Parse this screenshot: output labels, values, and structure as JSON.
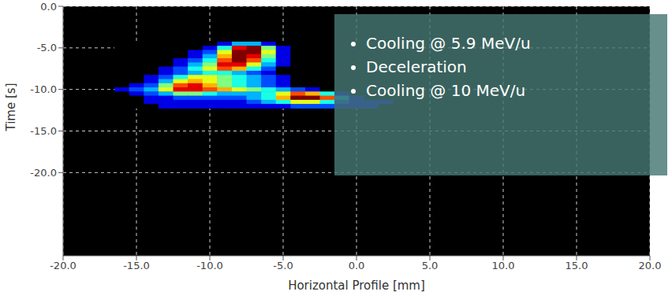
{
  "chart_data": {
    "type": "heatmap",
    "x_label": "Horizontal Profile [mm]",
    "y_label": "Time [s]",
    "xlim": [
      -20,
      20
    ],
    "ylim": [
      -30,
      0
    ],
    "xticks": [
      {
        "value": -20,
        "label": "-20.0"
      },
      {
        "value": -15,
        "label": "-15.0"
      },
      {
        "value": -10,
        "label": "-10.0"
      },
      {
        "value": -5,
        "label": "-5.0"
      },
      {
        "value": 0,
        "label": "0.0"
      },
      {
        "value": 5,
        "label": "5.0"
      },
      {
        "value": 10,
        "label": "10.0"
      },
      {
        "value": 15,
        "label": "15.0"
      },
      {
        "value": 20,
        "label": "20.0"
      }
    ],
    "yticks": [
      {
        "value": 0,
        "label": "0.0"
      },
      {
        "value": -5,
        "label": "-5.0"
      },
      {
        "value": -10,
        "label": "-10.0"
      },
      {
        "value": -15,
        "label": "-15.0"
      },
      {
        "value": -20,
        "label": "-20.0"
      }
    ],
    "grid": true,
    "color_range": [
      0,
      10
    ],
    "annotations": [
      "Cooling @ 5.9 MeV/u",
      "Deceleration",
      "Cooling @ 10 MeV/u"
    ],
    "cells": {
      "x": [
        -16,
        -15,
        -14,
        -13,
        -12,
        -11,
        -10,
        -9,
        -8,
        -7,
        -6,
        -5,
        -4,
        -3,
        -2,
        -1,
        0,
        1,
        2,
        3
      ],
      "y": [
        -4.5,
        -5,
        -5.5,
        -6,
        -6.5,
        -7,
        -7.5,
        -8,
        -8.5,
        -9,
        -9.5,
        -10,
        -10.5,
        -11,
        -11.5,
        -12
      ],
      "values": [
        [
          0,
          0,
          0,
          0,
          0,
          0,
          0,
          1,
          3,
          3,
          1,
          0,
          0,
          0,
          0,
          0,
          0,
          0,
          0,
          0
        ],
        [
          0,
          0,
          0,
          0,
          0,
          0,
          1,
          4,
          9,
          10,
          5,
          1,
          0,
          0,
          0,
          0,
          0,
          0,
          0,
          0
        ],
        [
          0,
          0,
          0,
          0,
          0,
          1,
          2,
          6,
          10,
          10,
          6,
          1,
          0,
          0,
          0,
          0,
          0,
          0,
          0,
          0
        ],
        [
          0,
          0,
          0,
          0,
          0,
          1,
          3,
          7,
          10,
          9,
          5,
          1,
          0,
          0,
          0,
          0,
          0,
          0,
          0,
          0
        ],
        [
          0,
          0,
          0,
          0,
          1,
          2,
          4,
          8,
          10,
          8,
          4,
          1,
          0,
          0,
          0,
          0,
          0,
          0,
          0,
          0
        ],
        [
          0,
          0,
          0,
          0,
          1,
          3,
          5,
          9,
          9,
          6,
          3,
          1,
          0,
          0,
          0,
          0,
          0,
          0,
          0,
          0
        ],
        [
          0,
          0,
          0,
          1,
          2,
          4,
          6,
          8,
          7,
          4,
          2,
          0,
          0,
          0,
          0,
          0,
          0,
          0,
          0,
          0
        ],
        [
          0,
          0,
          0,
          1,
          2,
          3,
          4,
          4,
          3,
          2,
          1,
          0,
          0,
          0,
          0,
          0,
          0,
          0,
          0,
          0
        ],
        [
          0,
          0,
          1,
          2,
          4,
          6,
          6,
          5,
          4,
          3,
          2,
          1,
          0,
          0,
          0,
          0,
          0,
          0,
          0,
          0
        ],
        [
          0,
          0,
          1,
          3,
          6,
          7,
          6,
          5,
          4,
          3,
          2,
          1,
          0,
          0,
          0,
          0,
          0,
          0,
          0,
          0
        ],
        [
          0,
          1,
          2,
          5,
          8,
          9,
          7,
          5,
          4,
          3,
          2,
          1,
          0,
          0,
          0,
          0,
          0,
          0,
          0,
          0
        ],
        [
          1,
          2,
          3,
          6,
          9,
          9,
          8,
          7,
          6,
          5,
          4,
          3,
          2,
          1,
          0,
          0,
          0,
          0,
          0,
          0
        ],
        [
          0,
          1,
          2,
          3,
          5,
          5,
          4,
          3,
          3,
          3,
          4,
          6,
          8,
          7,
          4,
          1,
          0,
          0,
          0,
          0
        ],
        [
          0,
          0,
          1,
          1,
          2,
          2,
          2,
          2,
          2,
          3,
          4,
          7,
          10,
          10,
          8,
          3,
          1,
          0,
          0,
          0
        ],
        [
          0,
          0,
          1,
          1,
          1,
          1,
          1,
          1,
          1,
          2,
          3,
          4,
          6,
          6,
          4,
          2,
          1,
          1,
          1,
          0
        ],
        [
          0,
          0,
          0,
          1,
          1,
          1,
          1,
          1,
          1,
          1,
          1,
          1,
          2,
          2,
          2,
          1,
          1,
          1,
          0,
          0
        ]
      ]
    }
  }
}
